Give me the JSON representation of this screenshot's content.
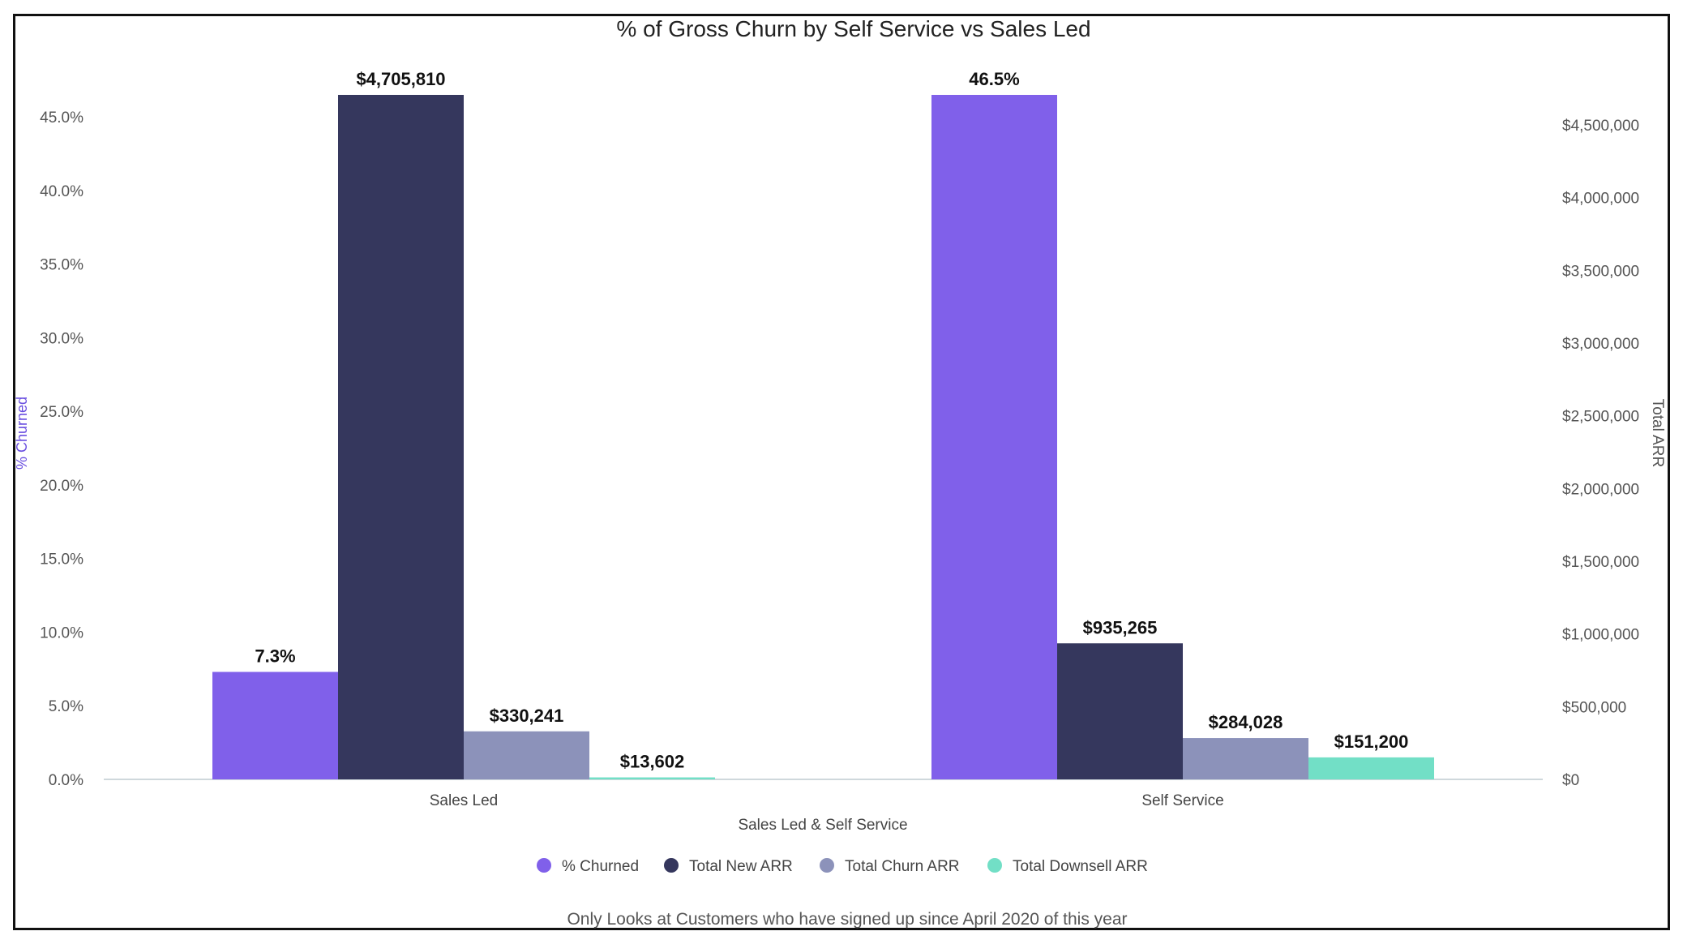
{
  "chart_data": {
    "type": "bar",
    "title": "% of Gross Churn by Self Service vs Sales Led",
    "xlabel": "Sales Led & Self Service",
    "ylabel_left": "% Churned",
    "ylabel_right": "Total ARR",
    "categories": [
      "Sales Led",
      "Self Service"
    ],
    "series": [
      {
        "name": "% Churned",
        "axis": "left",
        "values": [
          7.3,
          46.5
        ],
        "labels": [
          "7.3%",
          "46.5%"
        ],
        "color": "#8060EA"
      },
      {
        "name": "Total New ARR",
        "axis": "right",
        "values": [
          4705810,
          935265
        ],
        "labels": [
          "$4,705,810",
          "$935,265"
        ],
        "color": "#35375D"
      },
      {
        "name": "Total Churn ARR",
        "axis": "right",
        "values": [
          330241,
          284028
        ],
        "labels": [
          "$330,241",
          "$284,028"
        ],
        "color": "#8C92BA"
      },
      {
        "name": "Total Downsell ARR",
        "axis": "right",
        "values": [
          13602,
          151200
        ],
        "labels": [
          "$13,602",
          "$151,200"
        ],
        "color": "#72DFC6"
      }
    ],
    "ylim_left": [
      0,
      46.5
    ],
    "ylim_right": [
      0,
      4705810
    ],
    "yticks_left": [
      "0.0%",
      "5.0%",
      "10.0%",
      "15.0%",
      "20.0%",
      "25.0%",
      "30.0%",
      "35.0%",
      "40.0%",
      "45.0%"
    ],
    "yticks_left_values": [
      0,
      5,
      10,
      15,
      20,
      25,
      30,
      35,
      40,
      45
    ],
    "yticks_right": [
      "$0",
      "$500,000",
      "$1,000,000",
      "$1,500,000",
      "$2,000,000",
      "$2,500,000",
      "$3,000,000",
      "$3,500,000",
      "$4,000,000",
      "$4,500,000"
    ],
    "yticks_right_values": [
      0,
      500000,
      1000000,
      1500000,
      2000000,
      2500000,
      3000000,
      3500000,
      4000000,
      4500000
    ],
    "grid": false,
    "legend_position": "bottom",
    "note": "Only Looks at Customers who have signed up since April 2020 of this year"
  },
  "colors": {
    "left_axis_label": "#6A4FE0",
    "right_axis_label": "#555555",
    "baseline": "#cfd8dc"
  }
}
